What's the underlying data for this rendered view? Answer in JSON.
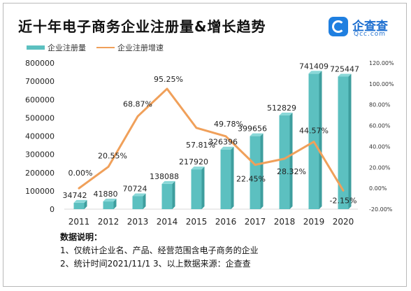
{
  "title": "近十年电子商务企业注册量&增长趋势",
  "logo": {
    "name": "企查查",
    "sub": "Qcc.com"
  },
  "legend": {
    "bar_label": "企业注册量",
    "line_label": "企业注册增速"
  },
  "colors": {
    "bar": "#5cc0c0",
    "bar_dark": "#3e9e9e",
    "bar_light": "#8ad8d8",
    "line": "#f0a05a"
  },
  "chart_data": {
    "type": "bar",
    "categories": [
      "2011",
      "2012",
      "2013",
      "2014",
      "2015",
      "2016",
      "2017",
      "2018",
      "2019",
      "2020"
    ],
    "series": [
      {
        "name": "企业注册量",
        "type": "bar",
        "axis": "left",
        "values": [
          34742,
          41880,
          70724,
          138088,
          217920,
          326396,
          399656,
          512829,
          741409,
          725447
        ],
        "labels": [
          "34742",
          "41880",
          "70724",
          "138088",
          "217920",
          "326396",
          "399656",
          "512829",
          "741409",
          "725447"
        ]
      },
      {
        "name": "企业注册增速",
        "type": "line",
        "axis": "right",
        "values": [
          0.0,
          20.55,
          68.87,
          95.25,
          57.81,
          49.78,
          22.45,
          28.32,
          44.57,
          -2.15
        ],
        "labels": [
          "0.00%",
          "20.55%",
          "68.87%",
          "95.25%",
          "57.81%",
          "49.78%",
          "22.45%",
          "28.32%",
          "44.57%",
          "-2.15%"
        ]
      }
    ],
    "y_left": {
      "lim": [
        0,
        800000
      ],
      "ticks": [
        0,
        100000,
        200000,
        300000,
        400000,
        500000,
        600000,
        700000,
        800000
      ],
      "tick_labels": [
        "0",
        "100000",
        "200000",
        "300000",
        "400000",
        "500000",
        "600000",
        "700000",
        "800000"
      ]
    },
    "y_right": {
      "lim": [
        -20,
        120
      ],
      "ticks": [
        -20,
        0,
        20,
        40,
        60,
        80,
        100,
        120
      ],
      "tick_labels": [
        "-20.00%",
        "0.00%",
        "20.00%",
        "40.00%",
        "60.00%",
        "80.00%",
        "100.00%",
        "120.00%"
      ]
    },
    "grid": false,
    "legend_position": "top-left"
  },
  "notes": {
    "title": "数据说明：",
    "line1": "1、仅统计企业名、产品、经营范围含电子商务的企业",
    "line2": "2、统计时间2021/11/1    3、以上数据来源：企查查"
  }
}
